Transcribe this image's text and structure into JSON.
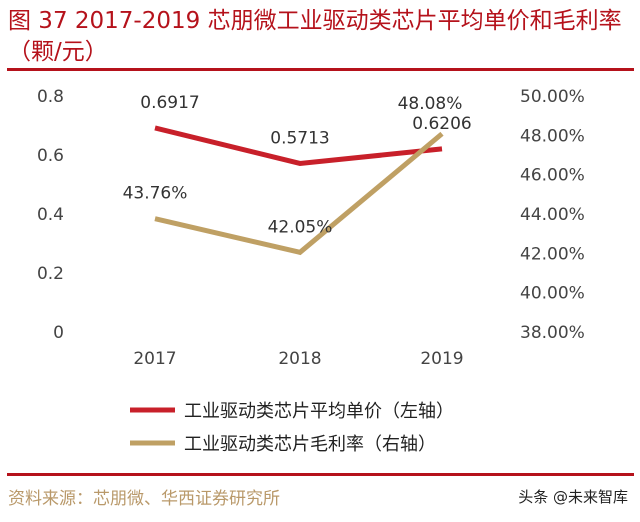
{
  "title": "图 37 2017-2019 芯朋微工业驱动类芯片平均单价和毛利率（颗/元）",
  "source": "资料来源：芯朋微、华西证券研究所",
  "watermark": "头条 @未来智库",
  "colors": {
    "title": "#b5121b",
    "price": "#c8202a",
    "margin": "#bfa064",
    "source": "#b9996a"
  },
  "chart_data": {
    "type": "line",
    "categories": [
      "2017",
      "2018",
      "2019"
    ],
    "left_axis": {
      "ylim": [
        0,
        0.8
      ],
      "ticks": [
        "0",
        "0.2",
        "0.4",
        "0.6",
        "0.8"
      ]
    },
    "right_axis": {
      "ylim": [
        38,
        50
      ],
      "ticks": [
        "38.00%",
        "40.00%",
        "42.00%",
        "44.00%",
        "46.00%",
        "48.00%",
        "50.00%"
      ]
    },
    "grid": false,
    "legend_position": "bottom",
    "series": [
      {
        "name": "工业驱动类芯片平均单价（左轴）",
        "axis": "left",
        "values": [
          0.6917,
          0.5713,
          0.6206
        ],
        "labels": [
          "0.6917",
          "0.5713",
          "0.6206"
        ]
      },
      {
        "name": "工业驱动类芯片毛利率（右轴）",
        "axis": "right",
        "values": [
          43.76,
          42.05,
          48.08
        ],
        "labels": [
          "43.76%",
          "42.05%",
          "48.08%"
        ]
      }
    ]
  }
}
